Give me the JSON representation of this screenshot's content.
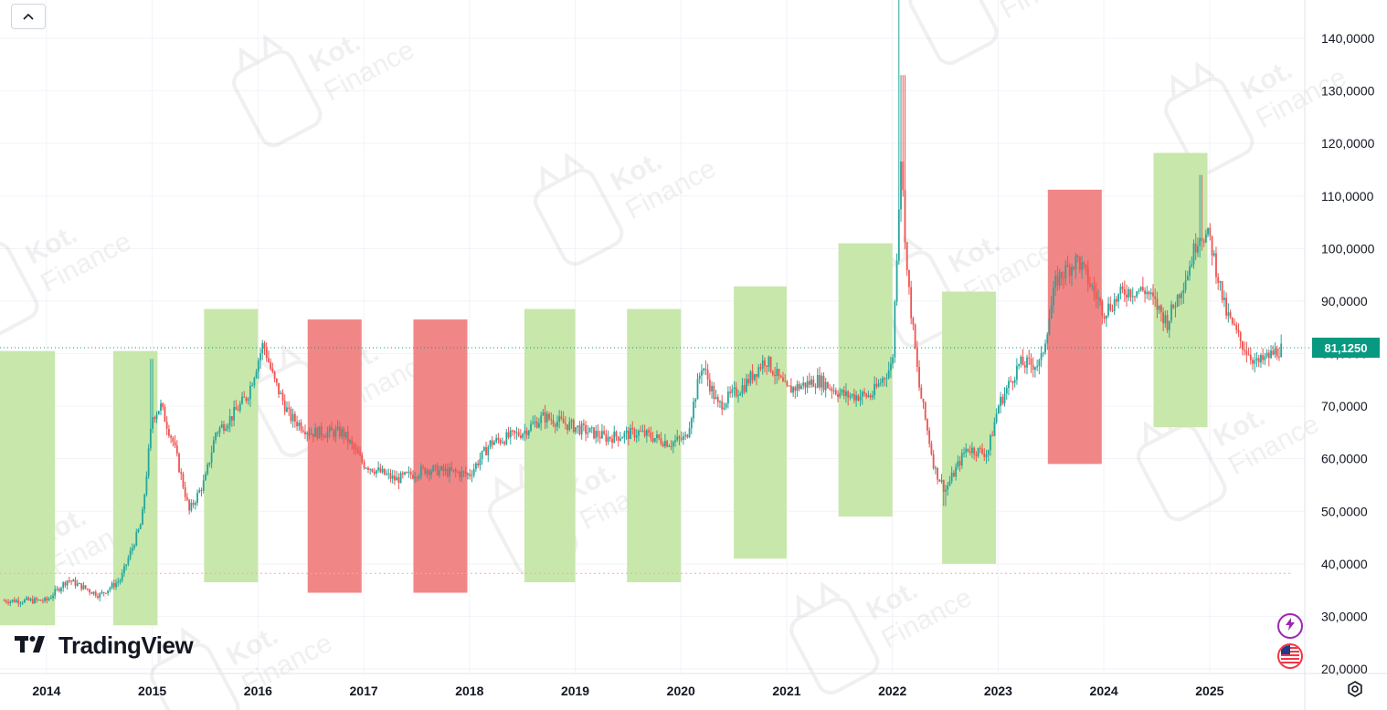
{
  "controls": {
    "collapse_icon": "chevron-up-icon",
    "settings_icon": "gear-icon"
  },
  "brand": {
    "name": "TradingView",
    "logo_icon": "tv-logo-icon"
  },
  "watermark": {
    "line1": "Kot.",
    "line2": "Finance"
  },
  "colors": {
    "up": "#26a69a",
    "down": "#ef5350",
    "green_zone": "#c5e6a6",
    "red_zone": "#f08080",
    "price_line": "#089981"
  },
  "chart_data": {
    "type": "candlestick",
    "title": "",
    "x_range": [
      2013.56,
      2025.9
    ],
    "y_range": [
      20,
      150
    ],
    "x_ticks": [
      "2014",
      "2015",
      "2016",
      "2017",
      "2018",
      "2019",
      "2020",
      "2021",
      "2022",
      "2023",
      "2024",
      "2025"
    ],
    "y_ticks": [
      "140,0000",
      "130,0000",
      "120,0000",
      "110,0000",
      "100,0000",
      "90,0000",
      "80,0000",
      "70,0000",
      "60,0000",
      "50,0000",
      "40,0000",
      "30,0000",
      "20,0000"
    ],
    "last_price": {
      "value": 81.125,
      "label": "81,1250"
    },
    "reference_line": {
      "value": 38.2
    },
    "zones": [
      {
        "kind": "green",
        "x0": 2013.56,
        "x1": 2014.08,
        "y0": 28.3,
        "y1": 80.5
      },
      {
        "kind": "green",
        "x0": 2014.63,
        "x1": 2015.05,
        "y0": 28.3,
        "y1": 80.5
      },
      {
        "kind": "green",
        "x0": 2015.49,
        "x1": 2016.0,
        "y0": 36.5,
        "y1": 88.5
      },
      {
        "kind": "red",
        "x0": 2016.47,
        "x1": 2016.98,
        "y0": 34.5,
        "y1": 86.5
      },
      {
        "kind": "red",
        "x0": 2017.47,
        "x1": 2017.98,
        "y0": 34.5,
        "y1": 86.5
      },
      {
        "kind": "green",
        "x0": 2018.52,
        "x1": 2019.0,
        "y0": 36.5,
        "y1": 88.5
      },
      {
        "kind": "green",
        "x0": 2019.49,
        "x1": 2020.0,
        "y0": 36.5,
        "y1": 88.5
      },
      {
        "kind": "green",
        "x0": 2020.5,
        "x1": 2021.0,
        "y0": 41.0,
        "y1": 92.8
      },
      {
        "kind": "green",
        "x0": 2021.49,
        "x1": 2022.0,
        "y0": 49.0,
        "y1": 101.0
      },
      {
        "kind": "green",
        "x0": 2022.47,
        "x1": 2022.98,
        "y0": 40.0,
        "y1": 91.8
      },
      {
        "kind": "red",
        "x0": 2023.47,
        "x1": 2023.98,
        "y0": 59.0,
        "y1": 111.2
      },
      {
        "kind": "green",
        "x0": 2024.47,
        "x1": 2024.98,
        "y0": 66.0,
        "y1": 118.2
      }
    ],
    "path": [
      [
        2013.6,
        33.0
      ],
      [
        2014.0,
        33.0
      ],
      [
        2014.2,
        37.0
      ],
      [
        2014.5,
        34.0
      ],
      [
        2014.7,
        37.0
      ],
      [
        2014.9,
        48.0
      ],
      [
        2015.0,
        68.0
      ],
      [
        2015.08,
        70.0
      ],
      [
        2015.2,
        63.0
      ],
      [
        2015.35,
        50.0
      ],
      [
        2015.5,
        56.0
      ],
      [
        2015.6,
        65.0
      ],
      [
        2015.75,
        68.0
      ],
      [
        2015.9,
        72.0
      ],
      [
        2016.05,
        82.0
      ],
      [
        2016.15,
        75.0
      ],
      [
        2016.3,
        68.0
      ],
      [
        2016.5,
        65.0
      ],
      [
        2016.8,
        65.0
      ],
      [
        2017.0,
        59.0
      ],
      [
        2017.3,
        56.0
      ],
      [
        2017.6,
        58.0
      ],
      [
        2018.0,
        57.0
      ],
      [
        2018.2,
        63.0
      ],
      [
        2018.5,
        65.0
      ],
      [
        2018.7,
        68.0
      ],
      [
        2019.0,
        66.0
      ],
      [
        2019.3,
        64.0
      ],
      [
        2019.6,
        65.0
      ],
      [
        2019.9,
        63.0
      ],
      [
        2020.05,
        64.0
      ],
      [
        2020.2,
        78.0
      ],
      [
        2020.35,
        70.0
      ],
      [
        2020.6,
        74.0
      ],
      [
        2020.8,
        79.0
      ],
      [
        2021.0,
        73.0
      ],
      [
        2021.3,
        75.0
      ],
      [
        2021.55,
        72.0
      ],
      [
        2021.8,
        72.0
      ],
      [
        2022.0,
        78.0
      ],
      [
        2022.08,
        118.0
      ],
      [
        2022.14,
        95.0
      ],
      [
        2022.25,
        74.0
      ],
      [
        2022.4,
        58.0
      ],
      [
        2022.5,
        54.0
      ],
      [
        2022.7,
        62.0
      ],
      [
        2022.9,
        61.0
      ],
      [
        2023.0,
        70.0
      ],
      [
        2023.2,
        78.0
      ],
      [
        2023.4,
        78.0
      ],
      [
        2023.55,
        94.0
      ],
      [
        2023.75,
        98.0
      ],
      [
        2024.0,
        88.0
      ],
      [
        2024.2,
        92.0
      ],
      [
        2024.4,
        92.0
      ],
      [
        2024.6,
        86.0
      ],
      [
        2024.8,
        96.0
      ],
      [
        2024.9,
        103.0
      ],
      [
        2025.0,
        102.0
      ],
      [
        2025.15,
        88.0
      ],
      [
        2025.3,
        82.0
      ],
      [
        2025.45,
        78.0
      ],
      [
        2025.6,
        80.0
      ],
      [
        2025.68,
        81.0
      ]
    ]
  }
}
